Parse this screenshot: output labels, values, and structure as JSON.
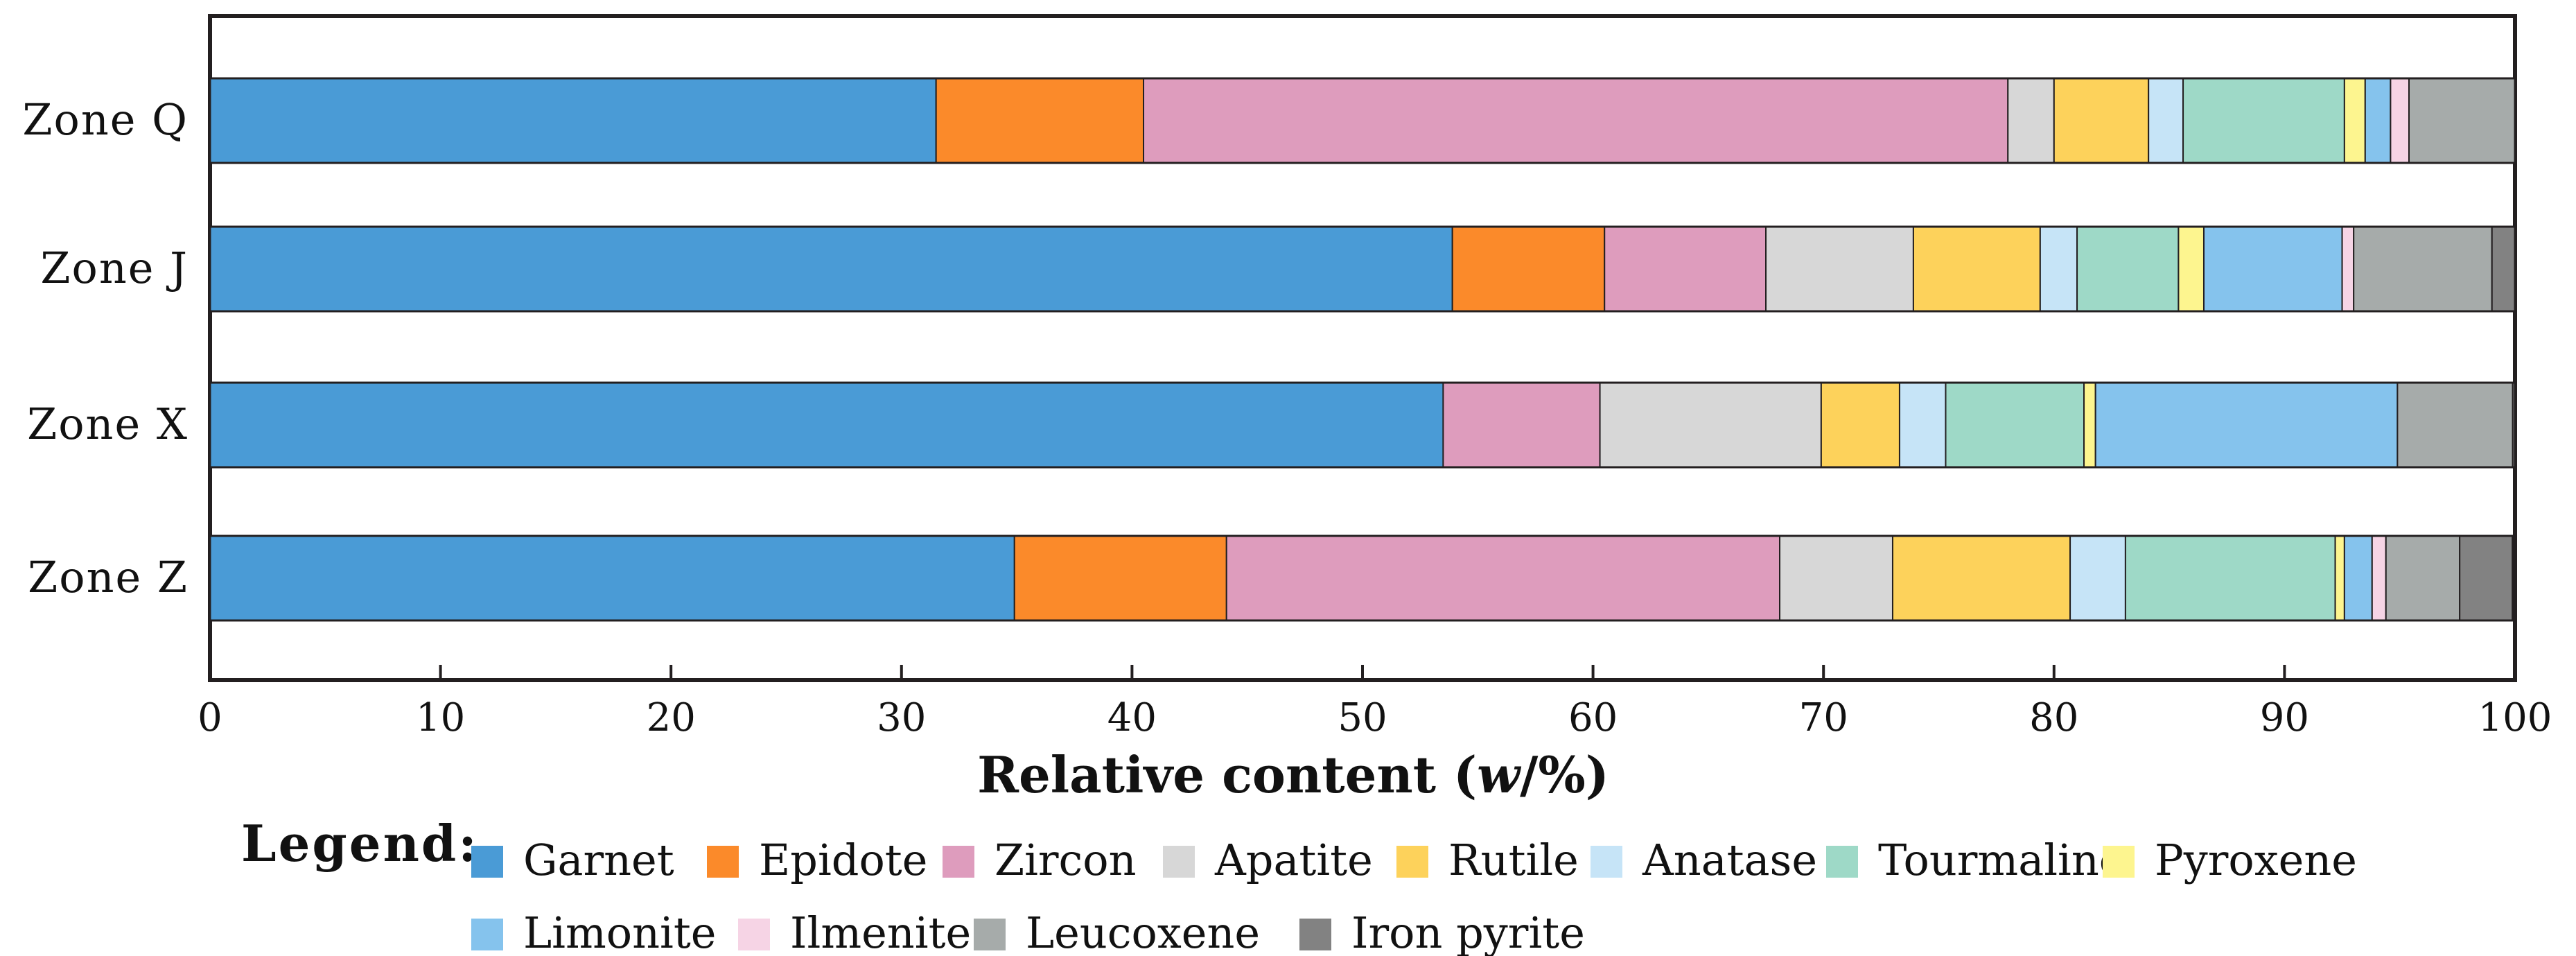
{
  "chart_data": {
    "type": "bar",
    "orientation": "horizontal",
    "stacked": true,
    "xlabel": "Relative content (w/%)",
    "xlabel_prefix": "Relative content (",
    "xlabel_italic": "w",
    "xlabel_suffix": "/%)",
    "xlim": [
      0,
      100
    ],
    "xticks": [
      0,
      10,
      20,
      30,
      40,
      50,
      60,
      70,
      80,
      90,
      100
    ],
    "categories": [
      "Zone  Q",
      "Zone  J",
      "Zone  X",
      "Zone  Z"
    ],
    "legend_title": "Legend:",
    "series": [
      {
        "name": "Garnet",
        "color": "#4a9bd6",
        "values": [
          31.5,
          53.9,
          53.5,
          34.9
        ]
      },
      {
        "name": "Epidote",
        "color": "#fb8a2a",
        "values": [
          9.0,
          6.6,
          0.0,
          9.2
        ]
      },
      {
        "name": "Zircon",
        "color": "#de9cbd",
        "values": [
          37.5,
          7.0,
          6.8,
          24.0
        ]
      },
      {
        "name": "Apatite",
        "color": "#d7d7d7",
        "values": [
          2.0,
          6.4,
          9.6,
          4.9
        ]
      },
      {
        "name": "Rutile",
        "color": "#fdd25b",
        "values": [
          4.1,
          5.5,
          3.4,
          7.7
        ]
      },
      {
        "name": "Anatase",
        "color": "#c6e4f7",
        "values": [
          1.5,
          1.6,
          2.0,
          2.4
        ]
      },
      {
        "name": "Tourmaline",
        "color": "#9ed9c7",
        "values": [
          7.0,
          4.4,
          6.0,
          9.1
        ]
      },
      {
        "name": "Pyroxene",
        "color": "#fdf58f",
        "values": [
          0.9,
          1.1,
          0.5,
          0.4
        ]
      },
      {
        "name": "Limonite",
        "color": "#85c3ed",
        "values": [
          1.1,
          6.0,
          13.1,
          1.2
        ]
      },
      {
        "name": "Ilmenite",
        "color": "#f6d4e5",
        "values": [
          0.8,
          0.5,
          0.0,
          0.6
        ]
      },
      {
        "name": "Leucoxene",
        "color": "#a6abaa",
        "values": [
          4.6,
          6.0,
          5.0,
          3.2
        ]
      },
      {
        "name": "Iron pyrite",
        "color": "#828282",
        "values": [
          0.0,
          1.0,
          0.1,
          2.3
        ]
      }
    ]
  }
}
